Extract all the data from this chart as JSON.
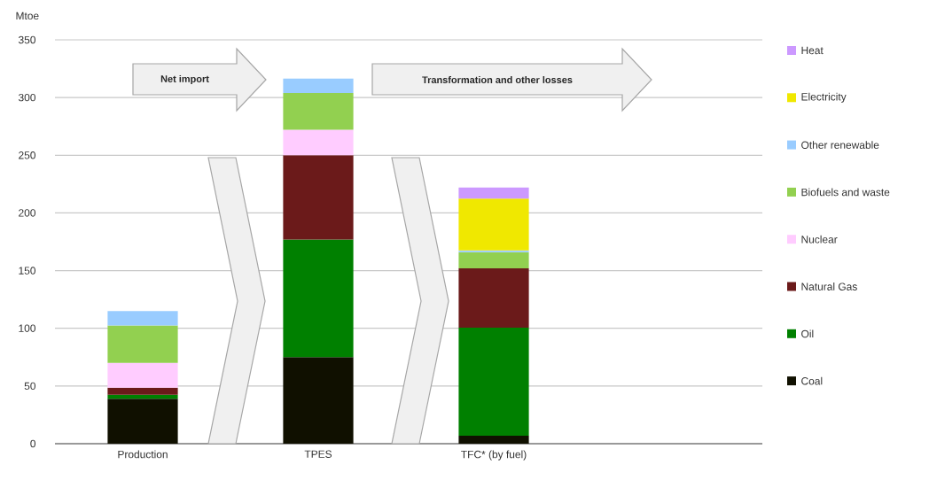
{
  "chart_data": {
    "type": "bar",
    "stacked": true,
    "ylabel": "Mtoe",
    "categories": [
      "Production",
      "TPES",
      "TFC* (by fuel)"
    ],
    "series": [
      {
        "name": "Coal",
        "color": "#101000",
        "values": [
          39,
          75,
          7
        ]
      },
      {
        "name": "Oil",
        "color": "#008000",
        "values": [
          3.5,
          102,
          93.5
        ]
      },
      {
        "name": "Natural Gas",
        "color": "#6b1a1a",
        "values": [
          6,
          73,
          51.5
        ]
      },
      {
        "name": "Nuclear",
        "color": "#ffccff",
        "values": [
          21.5,
          22,
          null
        ]
      },
      {
        "name": "Biofuels and waste",
        "color": "#92d050",
        "values": [
          32.5,
          32,
          14
        ]
      },
      {
        "name": "Other renewable",
        "color": "#99ccff",
        "values": [
          12.5,
          12.5,
          1.5
        ]
      },
      {
        "name": "Electricity",
        "color": "#f0e800",
        "values": [
          null,
          null,
          45
        ]
      },
      {
        "name": "Heat",
        "color": "#cc99ff",
        "values": [
          null,
          null,
          9.5
        ]
      }
    ],
    "ylim": [
      0,
      350
    ],
    "yticks": [
      0,
      50,
      100,
      150,
      200,
      250,
      300,
      350
    ],
    "grid": "y",
    "legend": "right",
    "annotations": [
      "Net import",
      "Transformation and other losses"
    ]
  }
}
